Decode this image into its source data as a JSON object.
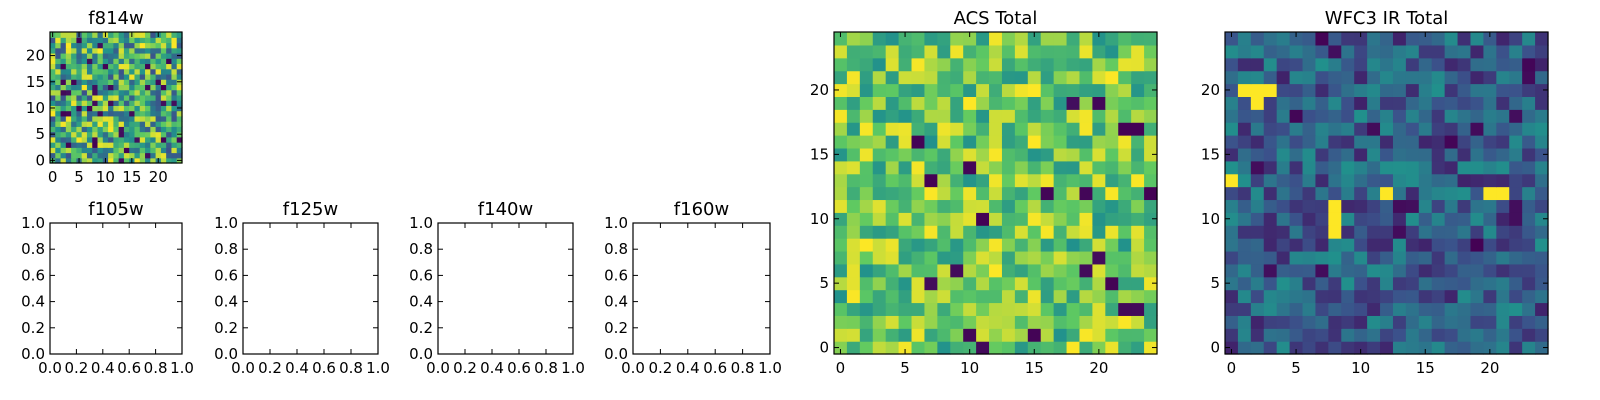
{
  "figure": {
    "colormap": [
      "#440154",
      "#3b528b",
      "#21918c",
      "#5ec962",
      "#fde725"
    ]
  },
  "chart_data": [
    {
      "type": "heatmap",
      "title": "f814w",
      "grid_size": 25,
      "xlim": [
        -0.5,
        24.5
      ],
      "ylim": [
        -0.5,
        24.5
      ],
      "xticks": [
        0,
        5,
        10,
        15,
        20
      ],
      "yticks": [
        0,
        5,
        10,
        15,
        20
      ],
      "xtick_labels": [
        "0",
        "5",
        "10",
        "15",
        "20"
      ],
      "ytick_labels": [
        "0",
        "5",
        "10",
        "15",
        "20"
      ],
      "seed": 814,
      "value_range": [
        0.25,
        1.0
      ],
      "dark_fraction": 0.05,
      "grid": false
    },
    {
      "type": "heatmap",
      "title": "f105w",
      "empty": true,
      "xlim": [
        0,
        1
      ],
      "ylim": [
        0,
        1
      ],
      "xticks": [
        0,
        0.2,
        0.4,
        0.6,
        0.8,
        1.0
      ],
      "yticks": [
        0,
        0.2,
        0.4,
        0.6,
        0.8,
        1.0
      ],
      "xtick_labels": [
        "0.0",
        "0.2",
        "0.4",
        "0.6",
        "0.8",
        "1.0"
      ],
      "ytick_labels": [
        "0.0",
        "0.2",
        "0.4",
        "0.6",
        "0.8",
        "1.0"
      ],
      "grid": false
    },
    {
      "type": "heatmap",
      "title": "f125w",
      "empty": true,
      "xlim": [
        0,
        1
      ],
      "ylim": [
        0,
        1
      ],
      "xticks": [
        0,
        0.2,
        0.4,
        0.6,
        0.8,
        1.0
      ],
      "yticks": [
        0,
        0.2,
        0.4,
        0.6,
        0.8,
        1.0
      ],
      "xtick_labels": [
        "0.0",
        "0.2",
        "0.4",
        "0.6",
        "0.8",
        "1.0"
      ],
      "ytick_labels": [
        "0.0",
        "0.2",
        "0.4",
        "0.6",
        "0.8",
        "1.0"
      ],
      "grid": false
    },
    {
      "type": "heatmap",
      "title": "f140w",
      "empty": true,
      "xlim": [
        0,
        1
      ],
      "ylim": [
        0,
        1
      ],
      "xticks": [
        0,
        0.2,
        0.4,
        0.6,
        0.8,
        1.0
      ],
      "yticks": [
        0,
        0.2,
        0.4,
        0.6,
        0.8,
        1.0
      ],
      "xtick_labels": [
        "0.0",
        "0.2",
        "0.4",
        "0.6",
        "0.8",
        "1.0"
      ],
      "ytick_labels": [
        "0.0",
        "0.2",
        "0.4",
        "0.6",
        "0.8",
        "1.0"
      ],
      "grid": false
    },
    {
      "type": "heatmap",
      "title": "f160w",
      "empty": true,
      "xlim": [
        0,
        1
      ],
      "ylim": [
        0,
        1
      ],
      "xticks": [
        0,
        0.2,
        0.4,
        0.6,
        0.8,
        1.0
      ],
      "yticks": [
        0,
        0.2,
        0.4,
        0.6,
        0.8,
        1.0
      ],
      "xtick_labels": [
        "0.0",
        "0.2",
        "0.4",
        "0.6",
        "0.8",
        "1.0"
      ],
      "ytick_labels": [
        "0.0",
        "0.2",
        "0.4",
        "0.6",
        "0.8",
        "1.0"
      ],
      "grid": false
    },
    {
      "type": "heatmap",
      "title": "ACS Total",
      "grid_size": 25,
      "xlim": [
        -0.5,
        24.5
      ],
      "ylim": [
        -0.5,
        24.5
      ],
      "xticks": [
        0,
        5,
        10,
        15,
        20
      ],
      "yticks": [
        0,
        5,
        10,
        15,
        20
      ],
      "xtick_labels": [
        "0",
        "5",
        "10",
        "15",
        "20"
      ],
      "ytick_labels": [
        "0",
        "5",
        "10",
        "15",
        "20"
      ],
      "seed": 1001,
      "value_range": [
        0.5,
        1.0
      ],
      "dark_fraction": 0.03,
      "grid": false
    },
    {
      "type": "heatmap",
      "title": "WFC3 IR Total",
      "grid_size": 25,
      "xlim": [
        -0.5,
        24.5
      ],
      "ylim": [
        -0.5,
        24.5
      ],
      "xticks": [
        0,
        5,
        10,
        15,
        20
      ],
      "yticks": [
        0,
        5,
        10,
        15,
        20
      ],
      "xtick_labels": [
        "0",
        "5",
        "10",
        "15",
        "20"
      ],
      "ytick_labels": [
        "0",
        "5",
        "10",
        "15",
        "20"
      ],
      "seed": 2002,
      "value_range": [
        0.1,
        0.5
      ],
      "dark_fraction": 0.03,
      "bright_cells": [
        [
          1,
          20
        ],
        [
          2,
          20
        ],
        [
          3,
          20
        ],
        [
          2,
          19
        ],
        [
          0,
          13
        ],
        [
          8,
          11
        ],
        [
          8,
          10
        ],
        [
          8,
          9
        ],
        [
          12,
          12
        ],
        [
          20,
          12
        ],
        [
          21,
          12
        ]
      ],
      "grid": false
    }
  ]
}
